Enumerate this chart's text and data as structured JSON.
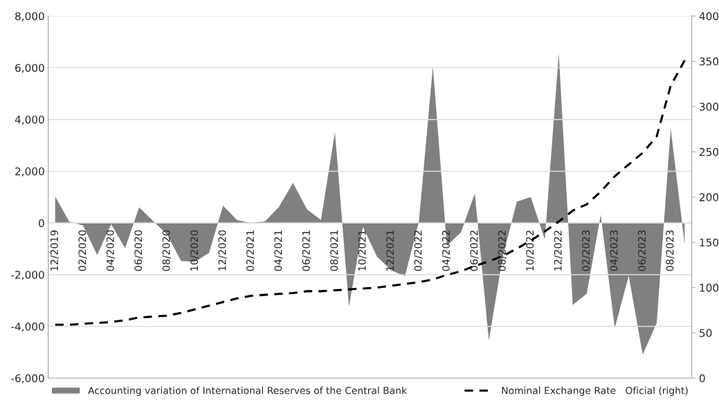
{
  "chart_data": {
    "type": "area",
    "categories": [
      "12/2019",
      null,
      "02/2020",
      null,
      "04/2020",
      null,
      "06/2020",
      null,
      "08/2020",
      null,
      "10/2020",
      null,
      "12/2020",
      null,
      "02/2021",
      null,
      "04/2021",
      null,
      "06/2021",
      null,
      "08/2021",
      null,
      "10/2021",
      null,
      "12/2021",
      null,
      "02/2022",
      null,
      "04/2022",
      null,
      "06/2022",
      null,
      "08/2022",
      null,
      "10/2022",
      null,
      "12/2022",
      null,
      "02/2023",
      null,
      "04/2023",
      null,
      "06/2023",
      null,
      "08/2023",
      null
    ],
    "series": [
      {
        "name": "Accounting variation of International Reserves of the Central Bank",
        "color": "#808080",
        "values": [
          1030,
          50,
          -100,
          -1240,
          -50,
          -980,
          600,
          80,
          -450,
          -1470,
          -1500,
          -1160,
          670,
          110,
          0,
          60,
          620,
          1550,
          530,
          110,
          3520,
          -3230,
          -150,
          -1300,
          -1830,
          -2060,
          50,
          6050,
          -880,
          -370,
          1140,
          -4540,
          -1300,
          820,
          1000,
          -640,
          6550,
          -3170,
          -2740,
          320,
          -4070,
          -2040,
          -5090,
          -3870,
          3650,
          -840
        ]
      },
      {
        "name": "Nominal Exchange Rate   Oficial (right)",
        "type": "line",
        "axis": "y2",
        "color": "#000000",
        "line_style": "dashed",
        "values": [
          59,
          59,
          60,
          61,
          62,
          64,
          67,
          68,
          69,
          72,
          76,
          80,
          84,
          88,
          91,
          92,
          93,
          94,
          96,
          96,
          97,
          98,
          99,
          100,
          102,
          104,
          106,
          109,
          114,
          118,
          124,
          129,
          135,
          143,
          152,
          162,
          173,
          185,
          192,
          206,
          223,
          236,
          249,
          267,
          323,
          351
        ]
      }
    ],
    "ylim": [
      -6000,
      8000
    ],
    "yticks": [
      {
        "value": -6000,
        "label": "-6,000"
      },
      {
        "value": -4000,
        "label": "-4,000"
      },
      {
        "value": -2000,
        "label": "-2,000"
      },
      0,
      {
        "value": 2000,
        "label": "2,000"
      },
      {
        "value": 4000,
        "label": "4,000"
      },
      {
        "value": 6000,
        "label": "6,000"
      },
      {
        "value": 8000,
        "label": "8,000"
      }
    ],
    "y2lim": [
      0,
      400
    ],
    "y2ticks": [
      0,
      50,
      100,
      150,
      200,
      250,
      300,
      350,
      400
    ],
    "grid": "y",
    "legend": "bottom"
  }
}
